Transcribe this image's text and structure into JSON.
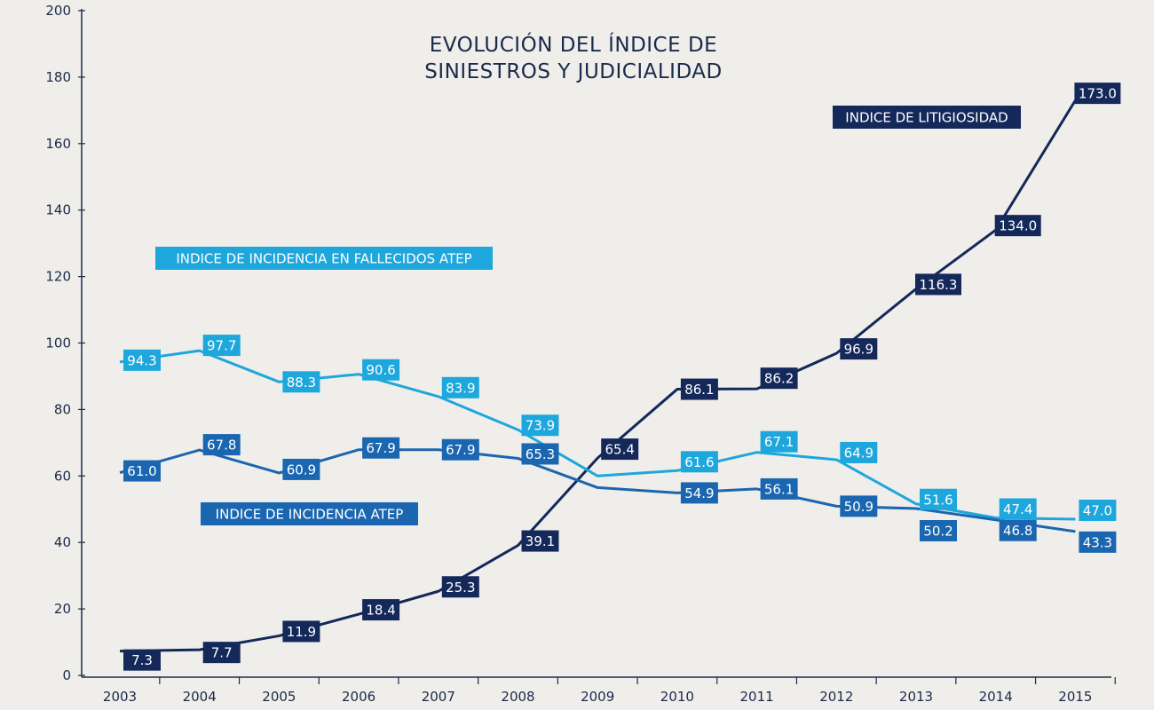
{
  "chart_data": {
    "type": "line",
    "title": "EVOLUCIÓN DEL ÍNDICE DE SINIESTROS Y JUDICIALIDAD",
    "title_lines": [
      "EVOLUCIÓN DEL ÍNDICE DE",
      "SINIESTROS Y JUDICIALIDAD"
    ],
    "xlabel": "",
    "ylabel": "",
    "x": [
      "2003",
      "2004",
      "2005",
      "2006",
      "2007",
      "2008",
      "2009",
      "2010",
      "2011",
      "2012",
      "2013",
      "2014",
      "2015"
    ],
    "ylim": [
      0,
      200
    ],
    "yticks": [
      "0",
      "20",
      "40",
      "60",
      "80",
      "100",
      "120",
      "140",
      "160",
      "180",
      "200"
    ],
    "grid": false,
    "series": [
      {
        "name": "INDICE DE LITIGIOSIDAD",
        "color": "#14285a",
        "values": [
          7.3,
          7.7,
          11.9,
          18.4,
          25.3,
          39.1,
          65.4,
          86.1,
          86.2,
          96.9,
          116.3,
          134.0,
          173.0
        ],
        "labels": [
          "7.3",
          "7.7",
          "11.9",
          "18.4",
          "25.3",
          "39.1",
          "65.4",
          "86.1",
          "86.2",
          "96.9",
          "116.3",
          "134.0",
          "173.0"
        ]
      },
      {
        "name": "INDICE DE INCIDENCIA EN FALLECIDOS ATEP",
        "color": "#1ea7dc",
        "values": [
          94.3,
          97.7,
          88.3,
          90.6,
          83.9,
          73.9,
          60.0,
          61.6,
          67.1,
          64.9,
          51.6,
          47.4,
          47.0
        ],
        "labels": [
          "94.3",
          "97.7",
          "88.3",
          "90.6",
          "83.9",
          "73.9",
          "",
          "61.6",
          "67.1",
          "64.9",
          "51.6",
          "47.4",
          "47.0"
        ]
      },
      {
        "name": "INDICE DE INCIDENCIA ATEP",
        "color": "#1b66b0",
        "values": [
          61.0,
          67.8,
          60.9,
          67.9,
          67.9,
          65.3,
          56.5,
          54.9,
          56.1,
          50.9,
          50.2,
          46.8,
          43.3
        ],
        "labels": [
          "61.0",
          "67.8",
          "60.9",
          "67.9",
          "67.9",
          "65.3",
          "",
          "54.9",
          "56.1",
          "50.9",
          "50.2",
          "46.8",
          "43.3"
        ]
      }
    ]
  }
}
